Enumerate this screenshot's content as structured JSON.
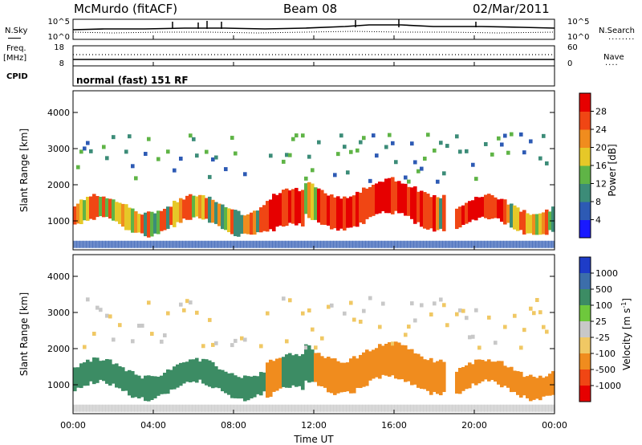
{
  "header": {
    "station": "McMurdo (fitACF)",
    "beam": "Beam 08",
    "date": "02/Mar/2011"
  },
  "noise_panel": {
    "left_label": "N.Sky",
    "right_label": "N.Search",
    "right_legend": "........",
    "left_ticks": [
      "10^5",
      "10^0"
    ],
    "right_ticks": [
      "10^5",
      "10^0"
    ]
  },
  "freq_panel": {
    "left_label_1": "Freq.",
    "left_label_2": "[MHz]",
    "right_label": "Nave",
    "right_legend": "....",
    "left_ticks": [
      "18",
      "8"
    ],
    "right_ticks": [
      "60",
      "0"
    ]
  },
  "cpid": {
    "label": "CPID",
    "value": "normal (fast) 151 RF"
  },
  "chart_data": [
    {
      "type": "heatmap",
      "name": "power",
      "ylabel": "Slant Range [km]",
      "yticks": [
        "1000",
        "2000",
        "3000",
        "4000"
      ],
      "ylim": [
        200,
        4600
      ],
      "xlim": [
        0,
        24
      ],
      "colorbar": {
        "label": "Power [dB]",
        "ticks": [
          "4",
          "8",
          "12",
          "16",
          "20",
          "24",
          "28"
        ],
        "colors": [
          "#1919ff",
          "#2d5ab4",
          "#3c8c78",
          "#5fb446",
          "#e6c828",
          "#f08c1e",
          "#f04614",
          "#e60000"
        ]
      }
    },
    {
      "type": "heatmap",
      "name": "velocity",
      "ylabel": "Slant Range [km]",
      "yticks": [
        "1000",
        "2000",
        "3000",
        "4000"
      ],
      "ylim": [
        200,
        4600
      ],
      "xlim": [
        0,
        24
      ],
      "xlabel": "Time UT",
      "xticks": [
        "00:00",
        "04:00",
        "08:00",
        "12:00",
        "16:00",
        "20:00",
        "00:00"
      ],
      "colorbar": {
        "label": "Velocity [m s",
        "label_sup": "-1",
        "label_end": "]",
        "ticks": [
          "1000",
          "500",
          "100",
          "25",
          "-25",
          "-100",
          "-500",
          "-1000"
        ],
        "colors": [
          "#1e3cc8",
          "#3c6eaa",
          "#3c8c64",
          "#6ec83c",
          "#c8c8c8",
          "#f0c864",
          "#f08c1e",
          "#f04614",
          "#e60000"
        ]
      }
    }
  ]
}
